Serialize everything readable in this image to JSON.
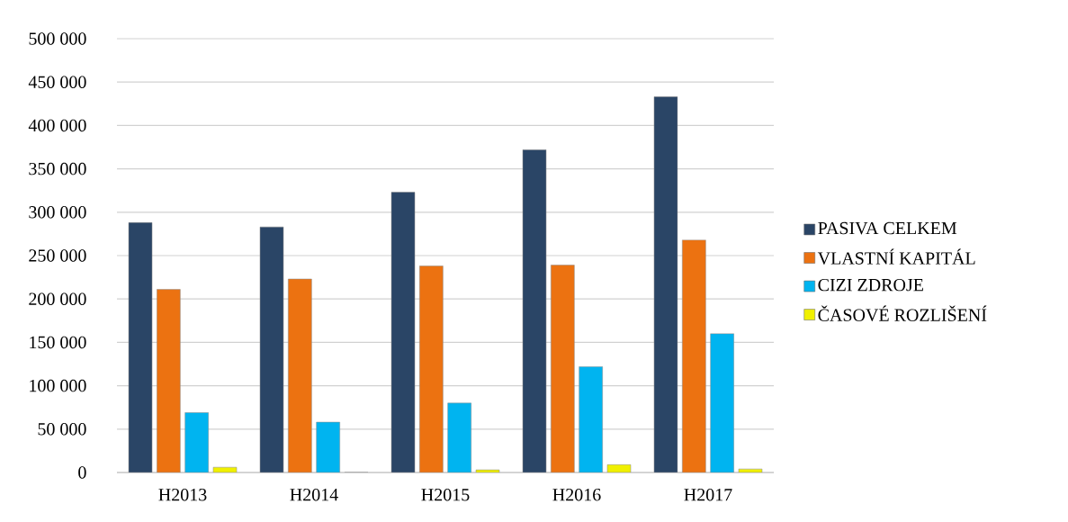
{
  "chart_data": {
    "type": "bar",
    "categories": [
      "H2013",
      "H2014",
      "H2015",
      "H2016",
      "H2017"
    ],
    "series": [
      {
        "name": "PASIVA CELKEM",
        "color": "#2a4566",
        "values": [
          288000,
          283000,
          323000,
          372000,
          433000
        ]
      },
      {
        "name": "VLASTNÍ KAPITÁL",
        "color": "#ec7211",
        "values": [
          211000,
          223000,
          238000,
          239000,
          268000
        ]
      },
      {
        "name": "CIZI ZDROJE",
        "color": "#00b4f0",
        "values": [
          69000,
          58000,
          80000,
          122000,
          160000
        ]
      },
      {
        "name": "ČASOVÉ ROZLIŠENÍ",
        "color": "#f0f000",
        "values": [
          6000,
          0,
          3000,
          9000,
          4000
        ]
      }
    ],
    "ylim": [
      0,
      500000
    ],
    "yticks": [
      {
        "value": 0,
        "label": "0"
      },
      {
        "value": 50000,
        "label": "50 000"
      },
      {
        "value": 100000,
        "label": "100 000"
      },
      {
        "value": 150000,
        "label": "150 000"
      },
      {
        "value": 200000,
        "label": "200 000"
      },
      {
        "value": 250000,
        "label": "250 000"
      },
      {
        "value": 300000,
        "label": "300 000"
      },
      {
        "value": 350000,
        "label": "350 000"
      },
      {
        "value": 400000,
        "label": "400 000"
      },
      {
        "value": 450000,
        "label": "450 000"
      },
      {
        "value": 500000,
        "label": "500 000"
      }
    ],
    "grid": "y",
    "legend": "right"
  }
}
